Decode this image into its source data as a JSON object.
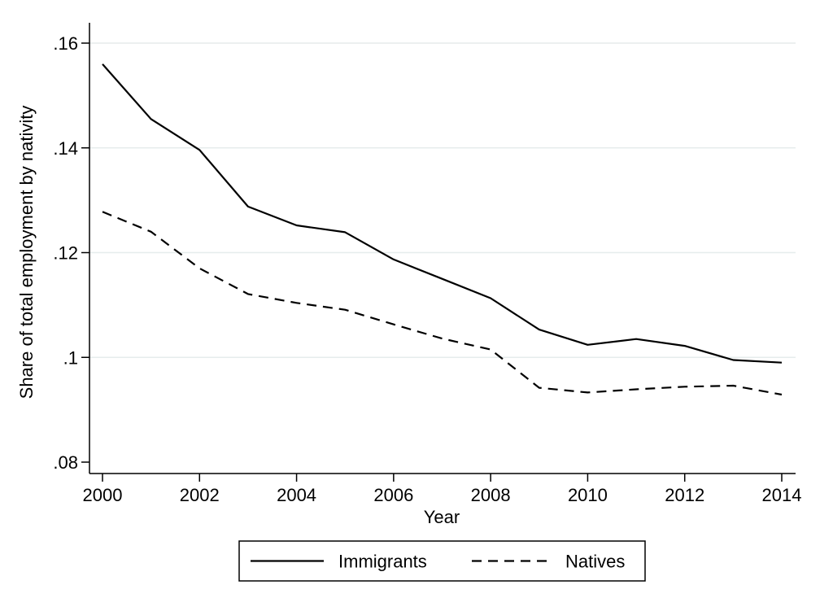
{
  "chart_data": {
    "type": "line",
    "xlabel": "Year",
    "ylabel": "Share of total employment by nativity",
    "xlim": [
      2000,
      2014
    ],
    "ylim": [
      0.08,
      0.16
    ],
    "xticks": [
      2000,
      2002,
      2004,
      2006,
      2008,
      2010,
      2012,
      2014
    ],
    "xtick_labels": [
      "2000",
      "2002",
      "2004",
      "2006",
      "2008",
      "2010",
      "2012",
      "2014"
    ],
    "yticks": [
      0.08,
      0.1,
      0.12,
      0.14,
      0.16
    ],
    "ytick_labels": [
      ".08",
      ".1",
      ".12",
      ".14",
      ".16"
    ],
    "grid": true,
    "legend_position": "bottom",
    "x": [
      2000,
      2001,
      2002,
      2003,
      2004,
      2005,
      2006,
      2007,
      2008,
      2009,
      2010,
      2011,
      2012,
      2013,
      2014
    ],
    "series": [
      {
        "name": "Immigrants",
        "style": "solid",
        "color": "#000000",
        "values": [
          0.156,
          0.1455,
          0.1396,
          0.1288,
          0.1252,
          0.1239,
          0.1187,
          0.115,
          0.1113,
          0.1053,
          0.1024,
          0.1035,
          0.1022,
          0.0995,
          0.099
        ]
      },
      {
        "name": "Natives",
        "style": "dashed",
        "color": "#000000",
        "values": [
          0.1278,
          0.124,
          0.117,
          0.1121,
          0.1104,
          0.1091,
          0.1063,
          0.1036,
          0.1015,
          0.0942,
          0.0933,
          0.0939,
          0.0944,
          0.0946,
          0.0929
        ]
      }
    ],
    "gridline_color": "#e6ecec"
  }
}
